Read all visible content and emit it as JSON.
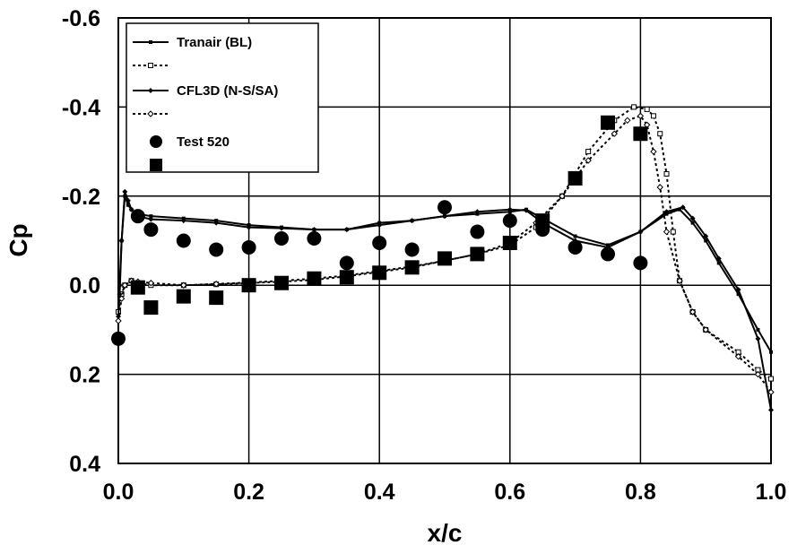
{
  "chart_data": {
    "type": "line",
    "title": "",
    "xlabel": "x/c",
    "ylabel": "Cp",
    "xlim": [
      0,
      1
    ],
    "ylim": [
      -0.6,
      0.4
    ],
    "y_inverted": true,
    "grid": true,
    "legend_placement": "top-left",
    "x_ticks": [
      "0.0",
      "0.2",
      "0.4",
      "0.6",
      "0.8",
      "1.0"
    ],
    "y_ticks": [
      "-0.6",
      "-0.4",
      "-0.2",
      "0.0",
      "0.2",
      "0.4"
    ],
    "series": [
      {
        "name": "Tranair (BL)",
        "style": "solid",
        "marker": "small-square-filled",
        "color": "#000000",
        "x": [
          0,
          0.002,
          0.005,
          0.01,
          0.015,
          0.02,
          0.03,
          0.05,
          0.1,
          0.15,
          0.2,
          0.25,
          0.3,
          0.35,
          0.4,
          0.45,
          0.5,
          0.55,
          0.6,
          0.625,
          0.65,
          0.7,
          0.75,
          0.8,
          0.84,
          0.86,
          0.88,
          0.9,
          0.92,
          0.95,
          0.98,
          1.0
        ],
        "y": [
          0.06,
          0.0,
          -0.1,
          -0.2,
          -0.18,
          -0.17,
          -0.16,
          -0.155,
          -0.15,
          -0.145,
          -0.135,
          -0.13,
          -0.125,
          -0.125,
          -0.14,
          -0.145,
          -0.155,
          -0.16,
          -0.165,
          -0.17,
          -0.15,
          -0.11,
          -0.09,
          -0.12,
          -0.16,
          -0.17,
          -0.14,
          -0.1,
          -0.05,
          0.02,
          0.1,
          0.15
        ]
      },
      {
        "name": "",
        "style": "dotted",
        "marker": "small-square-open",
        "color": "#000000",
        "x": [
          0,
          0.005,
          0.01,
          0.02,
          0.03,
          0.05,
          0.1,
          0.15,
          0.2,
          0.25,
          0.3,
          0.35,
          0.4,
          0.45,
          0.5,
          0.55,
          0.6,
          0.64,
          0.68,
          0.72,
          0.76,
          0.79,
          0.81,
          0.82,
          0.83,
          0.84,
          0.85,
          0.86,
          0.88,
          0.9,
          0.95,
          0.98,
          1.0
        ],
        "y": [
          0.06,
          0.02,
          0.0,
          -0.01,
          -0.005,
          0.0,
          0.0,
          -0.002,
          -0.005,
          -0.008,
          -0.012,
          -0.02,
          -0.03,
          -0.04,
          -0.055,
          -0.07,
          -0.09,
          -0.13,
          -0.2,
          -0.3,
          -0.37,
          -0.4,
          -0.395,
          -0.38,
          -0.34,
          -0.25,
          -0.12,
          -0.01,
          0.06,
          0.1,
          0.15,
          0.19,
          0.21
        ]
      },
      {
        "name": "CFL3D (N-S/SA)",
        "style": "solid",
        "marker": "small-diamond-filled",
        "color": "#000000",
        "x": [
          0,
          0.002,
          0.005,
          0.01,
          0.015,
          0.02,
          0.03,
          0.05,
          0.1,
          0.15,
          0.2,
          0.25,
          0.3,
          0.35,
          0.4,
          0.45,
          0.5,
          0.55,
          0.6,
          0.625,
          0.65,
          0.7,
          0.75,
          0.8,
          0.84,
          0.865,
          0.88,
          0.9,
          0.92,
          0.95,
          0.98,
          1.0
        ],
        "y": [
          0.07,
          0.02,
          -0.1,
          -0.21,
          -0.19,
          -0.17,
          -0.155,
          -0.148,
          -0.145,
          -0.14,
          -0.13,
          -0.128,
          -0.125,
          -0.125,
          -0.135,
          -0.145,
          -0.155,
          -0.165,
          -0.17,
          -0.168,
          -0.14,
          -0.1,
          -0.085,
          -0.12,
          -0.165,
          -0.175,
          -0.15,
          -0.11,
          -0.06,
          0.01,
          0.12,
          0.28
        ]
      },
      {
        "name": "",
        "style": "dotted",
        "marker": "small-diamond-open",
        "color": "#000000",
        "x": [
          0,
          0.005,
          0.01,
          0.02,
          0.03,
          0.05,
          0.1,
          0.15,
          0.2,
          0.25,
          0.3,
          0.35,
          0.4,
          0.45,
          0.5,
          0.55,
          0.6,
          0.64,
          0.68,
          0.72,
          0.76,
          0.78,
          0.8,
          0.81,
          0.82,
          0.83,
          0.84,
          0.86,
          0.88,
          0.9,
          0.95,
          0.98,
          1.0
        ],
        "y": [
          0.08,
          0.03,
          0.0,
          -0.01,
          -0.008,
          -0.005,
          0.0,
          -0.003,
          -0.006,
          -0.01,
          -0.015,
          -0.022,
          -0.032,
          -0.042,
          -0.055,
          -0.07,
          -0.095,
          -0.14,
          -0.2,
          -0.28,
          -0.34,
          -0.37,
          -0.38,
          -0.36,
          -0.3,
          -0.22,
          -0.12,
          -0.01,
          0.06,
          0.1,
          0.16,
          0.2,
          0.24
        ]
      },
      {
        "name": "Test 520",
        "style": "none",
        "marker": "circle-filled",
        "color": "#000000",
        "x": [
          0.0,
          0.03,
          0.05,
          0.1,
          0.15,
          0.2,
          0.25,
          0.3,
          0.35,
          0.4,
          0.45,
          0.5,
          0.55,
          0.6,
          0.65,
          0.7,
          0.75,
          0.8
        ],
        "y": [
          0.12,
          -0.155,
          -0.125,
          -0.1,
          -0.08,
          -0.085,
          -0.105,
          -0.105,
          -0.05,
          -0.095,
          -0.08,
          -0.175,
          -0.12,
          -0.145,
          -0.125,
          -0.085,
          -0.07,
          -0.05
        ]
      },
      {
        "name": "",
        "style": "none",
        "marker": "square-filled",
        "color": "#000000",
        "x": [
          0.03,
          0.05,
          0.1,
          0.15,
          0.2,
          0.25,
          0.3,
          0.35,
          0.4,
          0.45,
          0.5,
          0.55,
          0.6,
          0.65,
          0.7,
          0.75,
          0.8
        ],
        "y": [
          0.005,
          0.05,
          0.025,
          0.028,
          0.0,
          -0.005,
          -0.015,
          -0.018,
          -0.028,
          -0.04,
          -0.06,
          -0.07,
          -0.095,
          -0.145,
          -0.24,
          -0.365,
          -0.34
        ]
      }
    ]
  }
}
